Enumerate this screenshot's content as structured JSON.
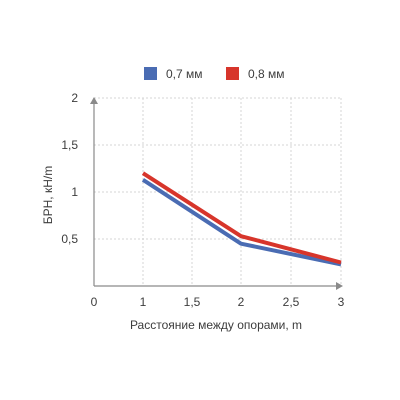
{
  "chart_data": {
    "type": "line",
    "title": "",
    "xlabel": "Расстояние между опорами, m",
    "ylabel": "БРН, кН/m",
    "x_ticks": [
      "0",
      "1",
      "1,5",
      "2",
      "2,5",
      "3"
    ],
    "y_ticks": [
      "0,5",
      "1",
      "1,5",
      "2"
    ],
    "xlim": [
      0.5,
      3
    ],
    "ylim": [
      0,
      2
    ],
    "grid": true,
    "legend_position": "top-center",
    "series": [
      {
        "name": "0,7 мм",
        "color": "#4a6cb3",
        "x": [
          1,
          2,
          3
        ],
        "y": [
          1.13,
          0.45,
          0.23
        ]
      },
      {
        "name": "0,8 мм",
        "color": "#d7352b",
        "x": [
          1,
          2,
          3
        ],
        "y": [
          1.2,
          0.53,
          0.25
        ]
      }
    ]
  }
}
